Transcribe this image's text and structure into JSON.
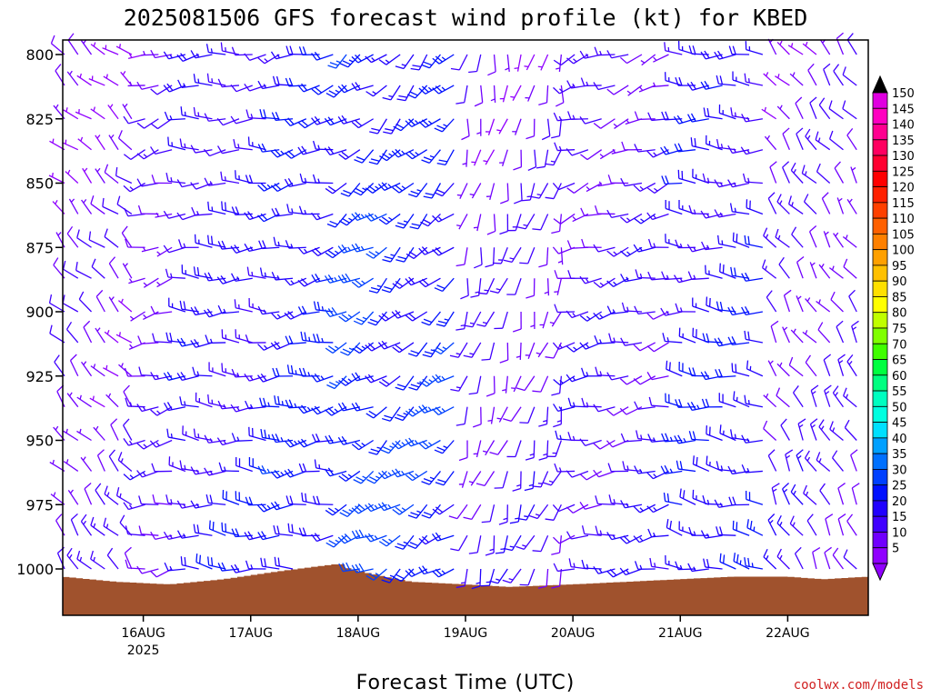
{
  "chart_data": {
    "type": "wind-barb-time-height",
    "title": "2025081506 GFS forecast wind profile (kt) for KBED",
    "xlabel": "Forecast Time (UTC)",
    "credit": "coolwx.com/models",
    "yaxis": {
      "label": "",
      "ticks": [
        "800",
        "825",
        "850",
        "875",
        "900",
        "925",
        "950",
        "975",
        "1000"
      ],
      "range": [
        800,
        1010
      ],
      "reversed": true
    },
    "xaxis": {
      "ticks": [
        {
          "label": "16AUG",
          "sublabel": "2025",
          "hour": 18
        },
        {
          "label": "17AUG",
          "sublabel": "",
          "hour": 42
        },
        {
          "label": "18AUG",
          "sublabel": "",
          "hour": 66
        },
        {
          "label": "19AUG",
          "sublabel": "",
          "hour": 90
        },
        {
          "label": "20AUG",
          "sublabel": "",
          "hour": 114
        },
        {
          "label": "21AUG",
          "sublabel": "",
          "hour": 138
        },
        {
          "label": "22AUG",
          "sublabel": "",
          "hour": 162
        }
      ],
      "range_hours": [
        0,
        180
      ]
    },
    "barb_levels_hpa": [
      800,
      812,
      825,
      837,
      850,
      862,
      875,
      887,
      900,
      912,
      925,
      937,
      950,
      962,
      975,
      987,
      1000
    ],
    "barb_step_hours": 3,
    "surface_pressure": [
      {
        "hour": 0,
        "hpa": 1003
      },
      {
        "hour": 12,
        "hpa": 1005
      },
      {
        "hour": 24,
        "hpa": 1006
      },
      {
        "hour": 36,
        "hpa": 1004
      },
      {
        "hour": 48,
        "hpa": 1001
      },
      {
        "hour": 57,
        "hpa": 999
      },
      {
        "hour": 62,
        "hpa": 998
      },
      {
        "hour": 64,
        "hpa": 1000
      },
      {
        "hour": 72,
        "hpa": 1003
      },
      {
        "hour": 78,
        "hpa": 1005
      },
      {
        "hour": 90,
        "hpa": 1006
      },
      {
        "hour": 100,
        "hpa": 1007
      },
      {
        "hour": 114,
        "hpa": 1006
      },
      {
        "hour": 126,
        "hpa": 1005
      },
      {
        "hour": 138,
        "hpa": 1004
      },
      {
        "hour": 150,
        "hpa": 1003
      },
      {
        "hour": 162,
        "hpa": 1003
      },
      {
        "hour": 170,
        "hpa": 1004
      },
      {
        "hour": 180,
        "hpa": 1003
      }
    ],
    "terrain_color": "#a0522d",
    "wind_regimes": [
      {
        "h0": 0,
        "h1": 18,
        "dir": 320,
        "spd": 10
      },
      {
        "h0": 18,
        "h1": 26,
        "dir": 260,
        "spd": 12
      },
      {
        "h0": 26,
        "h1": 48,
        "dir": 275,
        "spd": 18
      },
      {
        "h0": 48,
        "h1": 62,
        "dir": 265,
        "spd": 22
      },
      {
        "h0": 62,
        "h1": 72,
        "dir": 245,
        "spd": 26
      },
      {
        "h0": 72,
        "h1": 90,
        "dir": 235,
        "spd": 24
      },
      {
        "h0": 90,
        "h1": 112,
        "dir": 200,
        "spd": 12
      },
      {
        "h0": 112,
        "h1": 138,
        "dir": 260,
        "spd": 14
      },
      {
        "h0": 138,
        "h1": 158,
        "dir": 280,
        "spd": 20
      },
      {
        "h0": 158,
        "h1": 180,
        "dir": 330,
        "spd": 12
      }
    ],
    "colorbar": {
      "labels": [
        "150",
        "145",
        "140",
        "135",
        "130",
        "125",
        "120",
        "115",
        "110",
        "105",
        "100",
        "95",
        "90",
        "85",
        "80",
        "75",
        "70",
        "65",
        "60",
        "55",
        "50",
        "45",
        "40",
        "35",
        "30",
        "25",
        "20",
        "15",
        "10",
        "5"
      ],
      "colors": [
        "#e000e0",
        "#ff00c0",
        "#ff0090",
        "#ff0060",
        "#ff0030",
        "#ff0000",
        "#ff2000",
        "#ff4000",
        "#ff6000",
        "#ff8000",
        "#ffa000",
        "#ffc000",
        "#ffe000",
        "#ffff00",
        "#c0ff00",
        "#80ff00",
        "#40ff00",
        "#00ff40",
        "#00ff80",
        "#00ffc0",
        "#00ffe0",
        "#00e0ff",
        "#00a0ff",
        "#0070ff",
        "#0040ff",
        "#0010ff",
        "#2000ff",
        "#4000ff",
        "#7000ff",
        "#9000ff"
      ],
      "top_arrow_color": "#000000",
      "bottom_arrow_color": "#9000ff"
    }
  }
}
